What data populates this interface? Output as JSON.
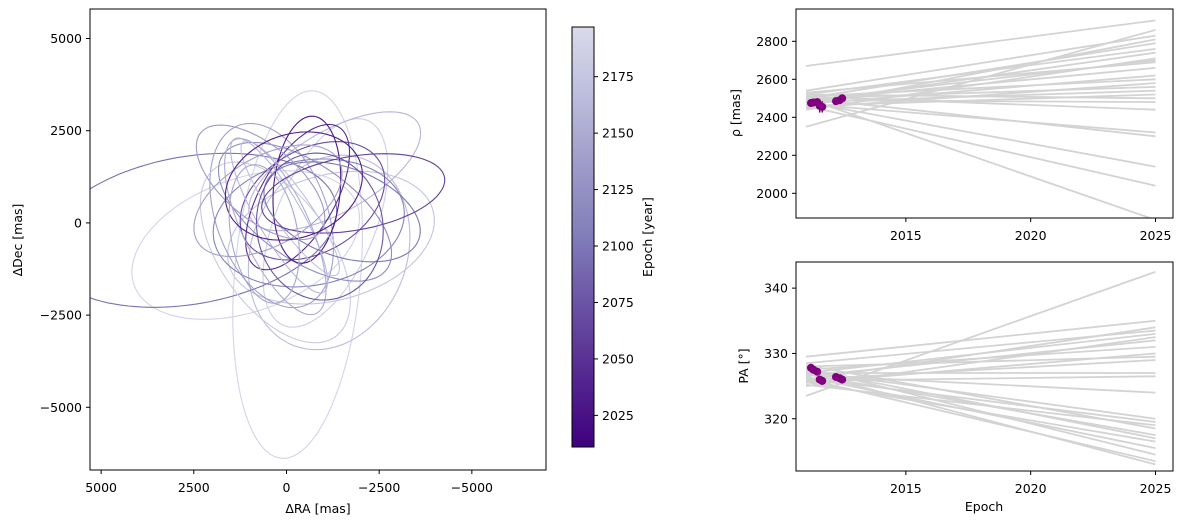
{
  "chart_data": [
    {
      "type": "line",
      "panel": "orbit-plot",
      "xlabel": "ΔRA [mas]",
      "ylabel": "ΔDec [mas]",
      "xlim": [
        5300,
        -7000
      ],
      "ylim": [
        -6700,
        5800
      ],
      "x_reversed": true,
      "xticks": [
        5000,
        2500,
        0,
        -2500,
        -5000
      ],
      "xtick_labels": [
        "5000",
        "2500",
        "0",
        "−2500",
        "−5000"
      ],
      "yticks": [
        5000,
        2500,
        0,
        -2500,
        -5000
      ],
      "ytick_labels": [
        "5000",
        "2500",
        "0",
        "−2500",
        "−5000"
      ],
      "orbits": [
        {
          "cx": -1050,
          "cy": 0,
          "a": 3000,
          "b": 1350,
          "rot": 112,
          "epoch": 2185
        },
        {
          "cx": -1200,
          "cy": -400,
          "a": 2850,
          "b": 1700,
          "rot": 165,
          "epoch": 2175
        },
        {
          "cx": -300,
          "cy": -1400,
          "a": 5000,
          "b": 1700,
          "rot": 95,
          "epoch": 2190
        },
        {
          "cx": 1100,
          "cy": -600,
          "a": 3200,
          "b": 1800,
          "rot": 160,
          "epoch": 2190
        },
        {
          "cx": -1150,
          "cy": -800,
          "a": 2700,
          "b": 2100,
          "rot": 110,
          "epoch": 2165
        },
        {
          "cx": 2600,
          "cy": -200,
          "a": 4000,
          "b": 2000,
          "rot": 170,
          "epoch": 2095
        },
        {
          "cx": 400,
          "cy": 200,
          "a": 2600,
          "b": 1500,
          "rot": 70,
          "epoch": 2140
        },
        {
          "cx": 300,
          "cy": -800,
          "a": 2800,
          "b": 1500,
          "rot": 55,
          "epoch": 2180
        },
        {
          "cx": -1300,
          "cy": 1400,
          "a": 2600,
          "b": 1100,
          "rot": 150,
          "epoch": 2160
        },
        {
          "cx": -500,
          "cy": 300,
          "a": 2700,
          "b": 1300,
          "rot": 35,
          "epoch": 2120
        },
        {
          "cx": -600,
          "cy": 0,
          "a": 2600,
          "b": 1700,
          "rot": 170,
          "epoch": 2110
        },
        {
          "cx": -700,
          "cy": 600,
          "a": 2100,
          "b": 1400,
          "rot": 150,
          "epoch": 2070
        },
        {
          "cx": -300,
          "cy": 700,
          "a": 2200,
          "b": 1000,
          "rot": 120,
          "epoch": 2045
        },
        {
          "cx": -550,
          "cy": 900,
          "a": 2000,
          "b": 900,
          "rot": 95,
          "epoch": 2030
        },
        {
          "cx": 200,
          "cy": 200,
          "a": 2400,
          "b": 600,
          "rot": 60,
          "epoch": 2160
        },
        {
          "cx": -100,
          "cy": 400,
          "a": 2200,
          "b": 500,
          "rot": 55,
          "epoch": 2170
        },
        {
          "cx": 300,
          "cy": -100,
          "a": 2600,
          "b": 900,
          "rot": 65,
          "epoch": 2150
        },
        {
          "cx": -1500,
          "cy": 300,
          "a": 2200,
          "b": 1200,
          "rot": 20,
          "epoch": 2100
        },
        {
          "cx": -1800,
          "cy": 800,
          "a": 2500,
          "b": 1000,
          "rot": 170,
          "epoch": 2060
        },
        {
          "cx": 500,
          "cy": 600,
          "a": 2200,
          "b": 1200,
          "rot": 150,
          "epoch": 2140
        },
        {
          "cx": -900,
          "cy": -100,
          "a": 2000,
          "b": 1700,
          "rot": 80,
          "epoch": 2075
        },
        {
          "cx": 700,
          "cy": 1100,
          "a": 2100,
          "b": 1000,
          "rot": 40,
          "epoch": 2135
        },
        {
          "cx": -200,
          "cy": 1000,
          "a": 1900,
          "b": 1400,
          "rot": 160,
          "epoch": 2035
        },
        {
          "cx": 600,
          "cy": -300,
          "a": 1900,
          "b": 900,
          "rot": 80,
          "epoch": 2145
        }
      ],
      "colorbar": {
        "label": "Epoch [year]",
        "min": 2011,
        "max": 2197,
        "ticks": [
          2025,
          2050,
          2075,
          2100,
          2125,
          2150,
          2175
        ],
        "colormap": [
          "#3f007d",
          "#54278f",
          "#6a51a3",
          "#807dba",
          "#9e9ac8",
          "#bcbddc",
          "#dadaeb"
        ]
      }
    },
    {
      "type": "line",
      "panel": "separation-plot",
      "xlabel": "",
      "ylabel": "ρ [mas]",
      "xlim": [
        2010.6,
        2025.7
      ],
      "ylim": [
        1870,
        2970
      ],
      "xticks": [
        2015,
        2020,
        2025
      ],
      "yticks": [
        2000,
        2200,
        2400,
        2600,
        2800
      ],
      "model_start_epoch": 2011.0,
      "model_end_epoch": 2025.0,
      "model_color": "#d3d3d3",
      "model_start_values": [
        2670,
        2350,
        2540,
        2460,
        2500,
        2520,
        2480,
        2440,
        2530,
        2490,
        2470,
        2510,
        2450,
        2500,
        2480,
        2460,
        2520,
        2490,
        2510,
        2470,
        2500,
        2480,
        2460,
        2500,
        2490
      ],
      "model_end_values": [
        2910,
        2860,
        2830,
        2810,
        2790,
        2760,
        2740,
        2710,
        2690,
        2660,
        2620,
        2600,
        2580,
        2560,
        2540,
        2520,
        2500,
        2480,
        2440,
        2320,
        2300,
        2140,
        2040,
        1860,
        2700
      ],
      "observations": {
        "color": "#800080",
        "epochs": [
          2011.2,
          2011.3,
          2011.45,
          2011.55,
          2011.65,
          2012.2,
          2012.35,
          2012.45
        ],
        "values": [
          2475,
          2478,
          2480,
          2460,
          2455,
          2485,
          2490,
          2500
        ],
        "errors": [
          20,
          20,
          20,
          35,
          30,
          20,
          20,
          20
        ]
      }
    },
    {
      "type": "line",
      "panel": "position-angle-plot",
      "xlabel": "Epoch",
      "ylabel": "PA [°]",
      "xlim": [
        2010.6,
        2025.7
      ],
      "ylim": [
        312,
        344
      ],
      "xticks": [
        2015,
        2020,
        2025
      ],
      "yticks": [
        320,
        330,
        340
      ],
      "model_start_epoch": 2011.0,
      "model_end_epoch": 2025.0,
      "model_color": "#d3d3d3",
      "model_start_values": [
        323.5,
        329.5,
        326.0,
        328.5,
        327.0,
        325.0,
        326.5,
        327.5,
        325.5,
        328.0,
        326.0,
        327.0,
        325.8,
        326.7,
        327.3,
        326.2,
        325.2,
        328.2,
        326.8,
        327.6,
        325.6,
        326.4,
        327.8,
        326.1,
        327.1
      ],
      "model_end_values": [
        342.5,
        335.0,
        334.0,
        333.5,
        333.0,
        332.5,
        332.0,
        331.0,
        330.0,
        329.5,
        329.0,
        327.0,
        326.5,
        324.0,
        320.0,
        319.5,
        319.0,
        318.5,
        317.5,
        317.0,
        316.5,
        315.5,
        314.5,
        313.5,
        313.0
      ],
      "observations": {
        "color": "#800080",
        "epochs": [
          2011.2,
          2011.3,
          2011.45,
          2011.55,
          2011.65,
          2012.2,
          2012.35,
          2012.45
        ],
        "values": [
          327.8,
          327.5,
          327.2,
          326.0,
          325.8,
          326.4,
          326.2,
          326.0
        ],
        "errors": [
          0.4,
          0.4,
          0.4,
          0.6,
          0.6,
          0.4,
          0.4,
          0.4
        ]
      }
    }
  ]
}
